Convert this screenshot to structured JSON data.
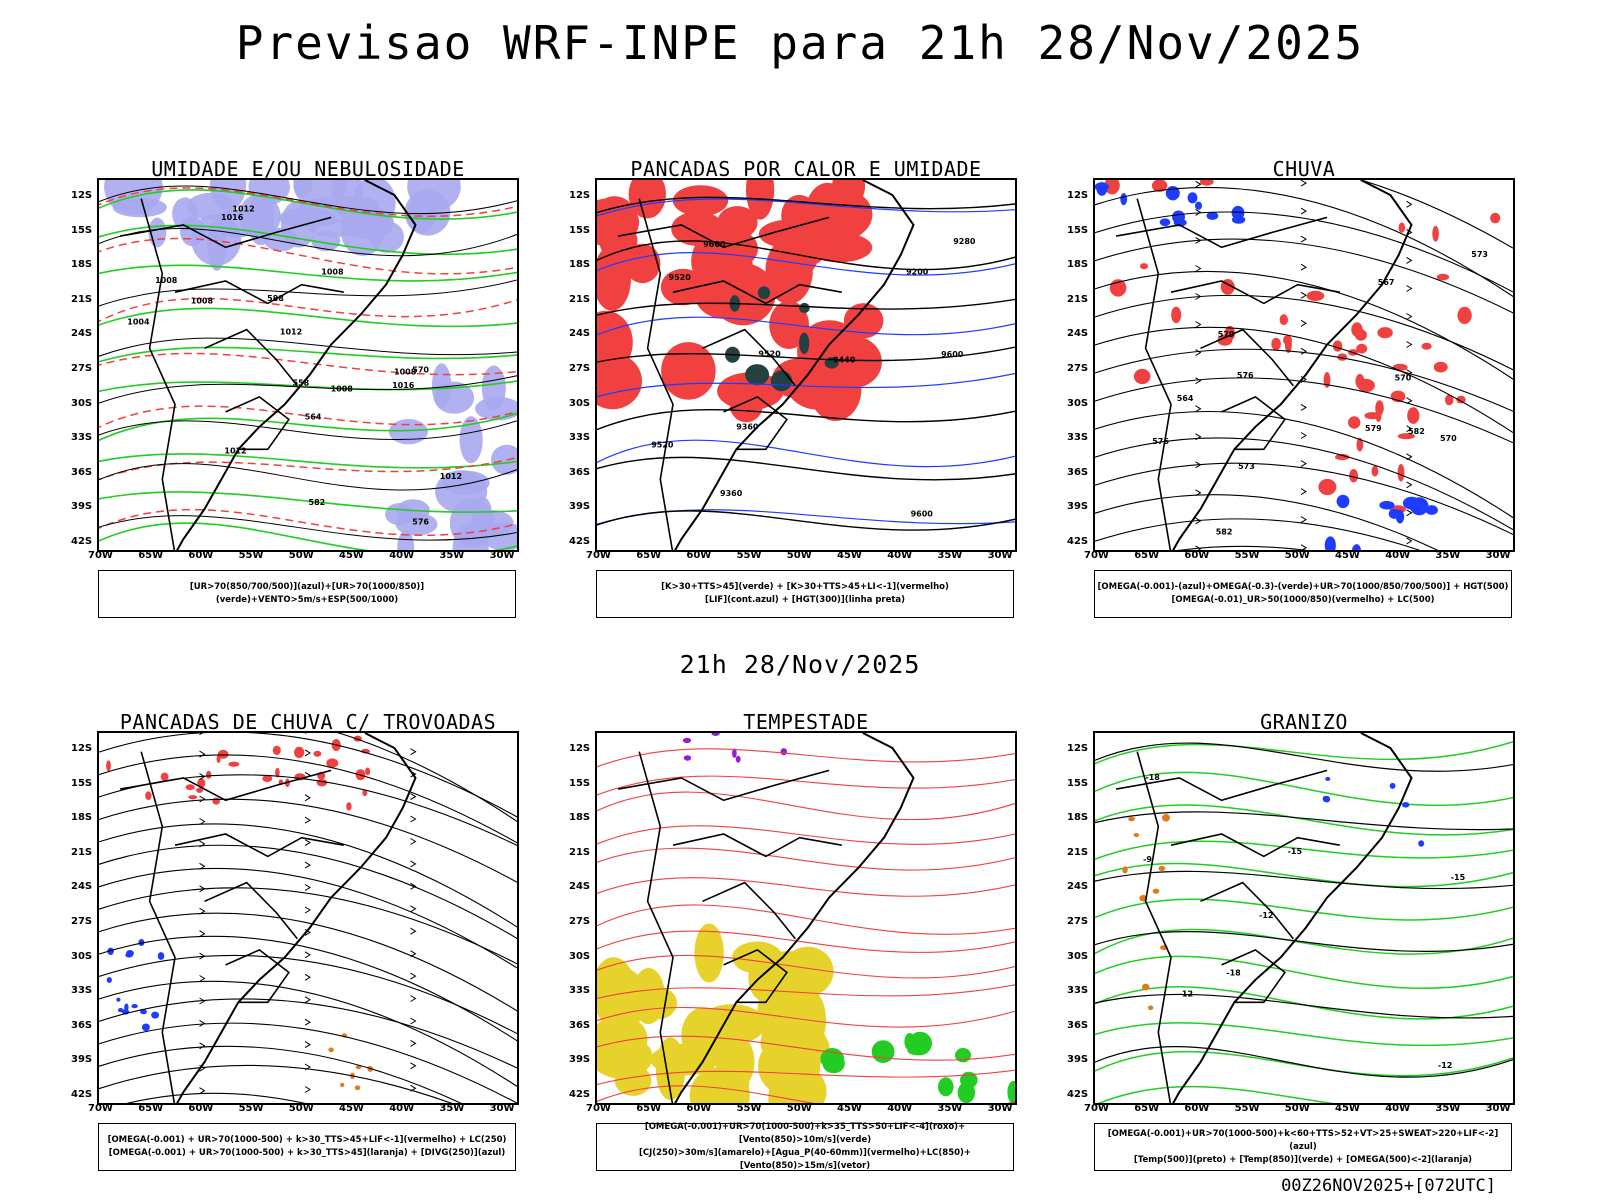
{
  "header": {
    "title": "Previsao WRF-INPE  para 21h 28/Nov/2025"
  },
  "middle": {
    "time_label": "21h 28/Nov/2025"
  },
  "footer": {
    "run_stamp": "00Z26NOV2025+[072UTC]"
  },
  "axes": {
    "lat_ticks": [
      "12S",
      "15S",
      "18S",
      "21S",
      "24S",
      "27S",
      "30S",
      "33S",
      "36S",
      "39S",
      "42S"
    ],
    "lon_ticks": [
      "70W",
      "65W",
      "60W",
      "55W",
      "50W",
      "45W",
      "40W",
      "35W",
      "30W"
    ]
  },
  "panels": [
    {
      "title": "UMIDADE E/OU NEBULOSIDADE",
      "legend": [
        "[UR>70(850/700/500)](azul)+[UR>70(1000/850)](verde)+VENTO>5m/s+ESP(500/1000)"
      ],
      "labels": [
        "1008",
        "1008",
        "1012",
        "1016",
        "1012",
        "1008",
        "1004",
        "1008",
        "1012",
        "1016",
        "1012",
        "1008",
        "576",
        "570",
        "564",
        "582",
        "588",
        "558"
      ]
    },
    {
      "title": "PANCADAS POR CALOR E UMIDADE",
      "legend": [
        "[K>30+TTS>45](verde) + [K>30+TTS>45+LI<-1](vermelho)",
        "[LIF](cont.azul) + [HGT(300)](linha preta)"
      ],
      "labels": [
        "9600",
        "9600",
        "9520",
        "9600",
        "9520",
        "9520",
        "9440",
        "9360",
        "9360",
        "9280",
        "9200"
      ]
    },
    {
      "title": "CHUVA",
      "legend": [
        "[OMEGA(-0.001)-(azul)+OMEGA(-0.3)-(verde)+UR>70(1000/850/700/500)] + HGT(500)",
        "[OMEGA(-0.01)_UR>50(1000/850)(vermelho) + LC(500)"
      ],
      "labels": [
        "582",
        "579",
        "576",
        "573",
        "570",
        "567",
        "564",
        "573",
        "570",
        "576",
        "579",
        "582"
      ]
    },
    {
      "title": "PANCADAS DE CHUVA C/ TROVOADAS",
      "legend": [
        "[OMEGA(-0.001) + UR>70(1000-500) + k>30_TTS>45+LIF<-1](vermelho) + LC(250)",
        "[OMEGA(-0.001) + UR>70(1000-500) + k>30_TTS>45](laranja) + [DIVG(250)](azul)"
      ],
      "labels": []
    },
    {
      "title": "TEMPESTADE",
      "legend": [
        "[OMEGA(-0.001)+UR>70(1000-500)+k>35_TTS>50+LIF<-4](roxo)+[Vento(850)>10m/s](verde)",
        "[CJ(250)>30m/s](amarelo)+[Agua_P(40-60mm)](vermelho)+LC(850)+[Vento(850)>15m/s](vetor)"
      ],
      "labels": []
    },
    {
      "title": "GRANIZO",
      "legend": [
        "[OMEGA(-0.001)+UR>70(1000-500)+k<60+TTS>52+VT>25+SWEAT>220+LIF<-2](azul)",
        "[Temp(500)](preto) + [Temp(850)](verde) + [OMEGA(500)<-2](laranja)"
      ],
      "labels": [
        "-12",
        "-9",
        "-12",
        "-15",
        "-18",
        "-15",
        "-12",
        "-18"
      ]
    }
  ],
  "colors": {
    "red": "#f04040",
    "green": "#22cc22",
    "blue": "#1e3cff",
    "lavender": "#a8a8f0",
    "yellow": "#e6d22a",
    "orange": "#e07a1a",
    "purple": "#9a1ad6",
    "dark": "#244040",
    "black": "#000000"
  }
}
